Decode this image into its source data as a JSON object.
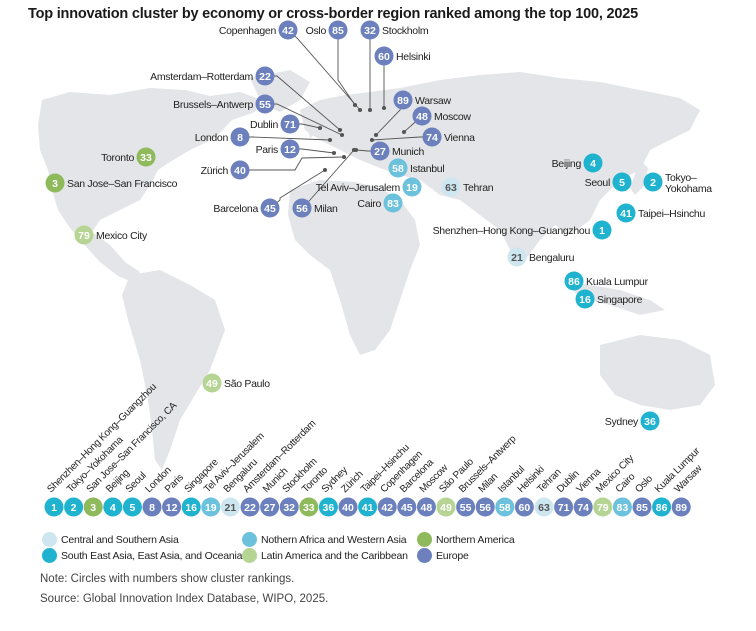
{
  "title": "Top innovation cluster by economy or cross-border region ranked among the top 100, 2025",
  "colors": {
    "central_southern_asia": "#cde6f0",
    "se_asia_east_asia_oceania": "#1fb3cf",
    "n_africa_w_asia": "#6cc2dd",
    "latin_america_caribbean": "#b6d595",
    "northern_america": "#8fba5c",
    "europe": "#6b80bd",
    "land": "#e3e5e8",
    "leader_line": "#555555"
  },
  "legend": [
    {
      "key": "central_southern_asia",
      "label": "Central and Southern Asia"
    },
    {
      "key": "se_asia_east_asia_oceania",
      "label": "South East Asia, East Asia, and Oceania"
    },
    {
      "key": "n_africa_w_asia",
      "label": "Nothern Africa and Western Asia"
    },
    {
      "key": "latin_america_caribbean",
      "label": "Latin America and the Caribbean"
    },
    {
      "key": "northern_america",
      "label": "Northern America"
    },
    {
      "key": "europe",
      "label": "Europe"
    }
  ],
  "clusters": [
    {
      "rank": 1,
      "name": "Shenzhen–Hong Kong–Guangzhou",
      "strip_name": "Shenzhen–Hong Kong–Guangzhou",
      "region": "se_asia_east_asia_oceania"
    },
    {
      "rank": 2,
      "name": "Tokyo–Yokohama",
      "strip_name": "Tokyo–Yokohama",
      "region": "se_asia_east_asia_oceania"
    },
    {
      "rank": 3,
      "name": "San Jose–San Francisco",
      "strip_name": "San Jose–San Francisco, CA",
      "region": "northern_america"
    },
    {
      "rank": 4,
      "name": "Beijing",
      "strip_name": "Beijing",
      "region": "se_asia_east_asia_oceania"
    },
    {
      "rank": 5,
      "name": "Seoul",
      "strip_name": "Seoul",
      "region": "se_asia_east_asia_oceania"
    },
    {
      "rank": 8,
      "name": "London",
      "strip_name": "London",
      "region": "europe"
    },
    {
      "rank": 12,
      "name": "Paris",
      "strip_name": "Paris",
      "region": "europe"
    },
    {
      "rank": 16,
      "name": "Singapore",
      "strip_name": "Singapore",
      "region": "se_asia_east_asia_oceania"
    },
    {
      "rank": 19,
      "name": "Tel Aviv–Jerusalem",
      "strip_name": "Tel Aviv–Jerusalem",
      "region": "n_africa_w_asia"
    },
    {
      "rank": 21,
      "name": "Bengaluru",
      "strip_name": "Bengaluru",
      "region": "central_southern_asia"
    },
    {
      "rank": 22,
      "name": "Amsterdam–Rotterdam",
      "strip_name": "Amsterdam–Rotterdam",
      "region": "europe"
    },
    {
      "rank": 27,
      "name": "Munich",
      "strip_name": "Munich",
      "region": "europe"
    },
    {
      "rank": 32,
      "name": "Stockholm",
      "strip_name": "Stockholm",
      "region": "europe"
    },
    {
      "rank": 33,
      "name": "Toronto",
      "strip_name": "Toronto",
      "region": "northern_america"
    },
    {
      "rank": 36,
      "name": "Sydney",
      "strip_name": "Sydney",
      "region": "se_asia_east_asia_oceania"
    },
    {
      "rank": 40,
      "name": "Zürich",
      "strip_name": "Zürich",
      "region": "europe"
    },
    {
      "rank": 41,
      "name": "Taipei–Hsinchu",
      "strip_name": "Taipei–Hsinchu",
      "region": "se_asia_east_asia_oceania"
    },
    {
      "rank": 42,
      "name": "Copenhagen",
      "strip_name": "Copenhagen",
      "region": "europe"
    },
    {
      "rank": 45,
      "name": "Barcelona",
      "strip_name": "Barcelona",
      "region": "europe"
    },
    {
      "rank": 48,
      "name": "Moscow",
      "strip_name": "Moscow",
      "region": "europe"
    },
    {
      "rank": 49,
      "name": "São Paulo",
      "strip_name": "São Paulo",
      "region": "latin_america_caribbean"
    },
    {
      "rank": 55,
      "name": "Brussels–Antwerp",
      "strip_name": "Brussels–Antwerp",
      "region": "europe"
    },
    {
      "rank": 56,
      "name": "Milan",
      "strip_name": "Milan",
      "region": "europe"
    },
    {
      "rank": 58,
      "name": "Istanbul",
      "strip_name": "Istanbul",
      "region": "n_africa_w_asia"
    },
    {
      "rank": 60,
      "name": "Helsinki",
      "strip_name": "Helsinki",
      "region": "europe"
    },
    {
      "rank": 63,
      "name": "Tehran",
      "strip_name": "Tehran",
      "region": "central_southern_asia"
    },
    {
      "rank": 71,
      "name": "Dublin",
      "strip_name": "Dublin",
      "region": "europe"
    },
    {
      "rank": 74,
      "name": "Vienna",
      "strip_name": "Vienna",
      "region": "europe"
    },
    {
      "rank": 79,
      "name": "Mexico City",
      "strip_name": "Mexico City",
      "region": "latin_america_caribbean"
    },
    {
      "rank": 83,
      "name": "Cairo",
      "strip_name": "Cairo",
      "region": "n_africa_w_asia"
    },
    {
      "rank": 85,
      "name": "Oslo",
      "strip_name": "Oslo",
      "region": "europe"
    },
    {
      "rank": 86,
      "name": "Kuala Lumpur",
      "strip_name": "Kuala Lumpur",
      "region": "se_asia_east_asia_oceania"
    },
    {
      "rank": 89,
      "name": "Warsaw",
      "strip_name": "Warsaw",
      "region": "europe"
    }
  ],
  "note": "Note: Circles with numbers show cluster rankings.",
  "source": "Source: Global Innovation Index Database, WIPO, 2025."
}
